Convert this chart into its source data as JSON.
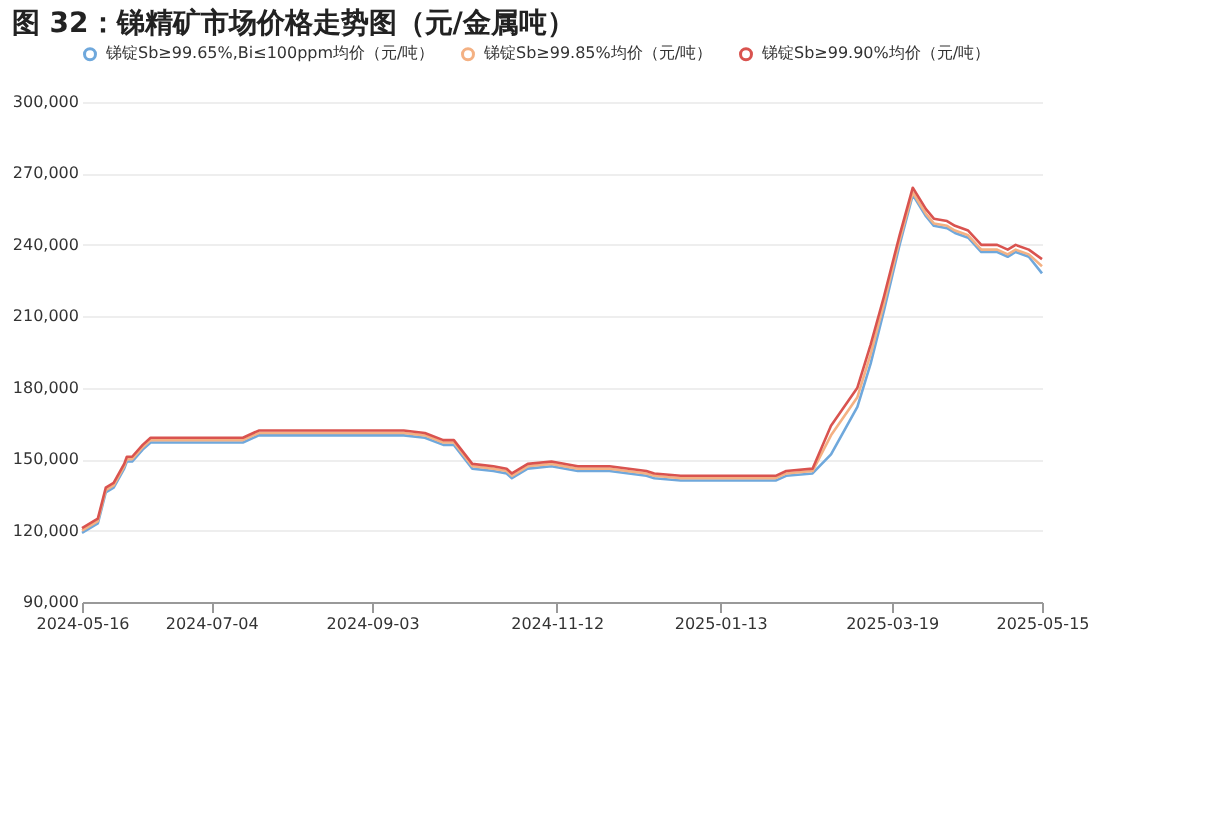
{
  "chart_data": {
    "type": "line",
    "title": "图 32：锑精矿市场价格走势图（元/金属吨）",
    "x": [
      "2024-05-16",
      "2024-05-22",
      "2024-05-25",
      "2024-05-28",
      "2024-06-01",
      "2024-06-02",
      "2024-06-04",
      "2024-06-08",
      "2024-06-11",
      "2024-07-16",
      "2024-07-22",
      "2024-09-15",
      "2024-09-23",
      "2024-09-30",
      "2024-10-04",
      "2024-10-11",
      "2024-10-19",
      "2024-10-24",
      "2024-10-26",
      "2024-11-01",
      "2024-11-10",
      "2024-11-20",
      "2024-12-02",
      "2024-12-16",
      "2024-12-19",
      "2024-12-29",
      "2025-02-03",
      "2025-02-07",
      "2025-02-17",
      "2025-02-24",
      "2025-03-06",
      "2025-03-11",
      "2025-03-16",
      "2025-03-22",
      "2025-03-27",
      "2025-04-01",
      "2025-04-04",
      "2025-04-09",
      "2025-04-12",
      "2025-04-17",
      "2025-04-22",
      "2025-04-28",
      "2025-05-02",
      "2025-05-05",
      "2025-05-10",
      "2025-05-15"
    ],
    "series": [
      {
        "name": "锑锭Sb≥99.65%,Bi≤100ppm均价（元/吨）",
        "color": "#6fa8dc",
        "values": [
          119000,
          123000,
          136000,
          138000,
          146000,
          149000,
          149000,
          154000,
          157000,
          157000,
          160000,
          160000,
          159000,
          156000,
          156000,
          146000,
          145000,
          144000,
          142000,
          146000,
          147000,
          145000,
          145000,
          143000,
          142000,
          141000,
          141000,
          143000,
          144000,
          152000,
          172000,
          190000,
          212000,
          240000,
          261000,
          252000,
          248000,
          247000,
          245000,
          243000,
          237000,
          237000,
          235000,
          237000,
          235000,
          228000
        ]
      },
      {
        "name": "锑锭Sb≥99.85%均价（元/吨）",
        "color": "#f4b183",
        "values": [
          120000,
          124000,
          137000,
          139000,
          147000,
          150000,
          150000,
          155000,
          158000,
          158000,
          161000,
          161000,
          160000,
          157000,
          157000,
          147000,
          146000,
          145000,
          143000,
          147000,
          148000,
          146000,
          146000,
          144000,
          143000,
          142000,
          142000,
          144000,
          145000,
          160000,
          176000,
          194000,
          215000,
          242000,
          262000,
          253000,
          249000,
          248000,
          246000,
          244000,
          238000,
          238000,
          236000,
          238000,
          236000,
          231000
        ]
      },
      {
        "name": "锑锭Sb≥99.90%均价（元/吨）",
        "color": "#d9534f",
        "values": [
          121000,
          125000,
          138000,
          140000,
          148000,
          151000,
          151000,
          156000,
          159000,
          159000,
          162000,
          162000,
          161000,
          158000,
          158000,
          148000,
          147000,
          146000,
          144000,
          148000,
          149000,
          147000,
          147000,
          145000,
          144000,
          143000,
          143000,
          145000,
          146000,
          164000,
          180000,
          198000,
          218000,
          244000,
          264000,
          255000,
          251000,
          250000,
          248000,
          246000,
          240000,
          240000,
          238000,
          240000,
          238000,
          234000
        ]
      }
    ],
    "xlim": [
      "2024-05-16",
      "2025-05-15"
    ],
    "xticks": [
      "2024-05-16",
      "2024-07-04",
      "2024-09-03",
      "2024-11-12",
      "2025-01-13",
      "2025-03-19",
      "2025-05-15"
    ],
    "ylim": [
      90000,
      300000
    ],
    "yticks": [
      {
        "value": 90000,
        "label": "90,000"
      },
      {
        "value": 120000,
        "label": "120,000"
      },
      {
        "value": 150000,
        "label": "150,000"
      },
      {
        "value": 180000,
        "label": "180,000"
      },
      {
        "value": 210000,
        "label": "210,000"
      },
      {
        "value": 240000,
        "label": "240,000"
      },
      {
        "value": 270000,
        "label": "270,000"
      },
      {
        "value": 300000,
        "label": "300,000"
      }
    ],
    "grid": "y",
    "legend": "top",
    "marker": "none",
    "line_style": "solid"
  }
}
